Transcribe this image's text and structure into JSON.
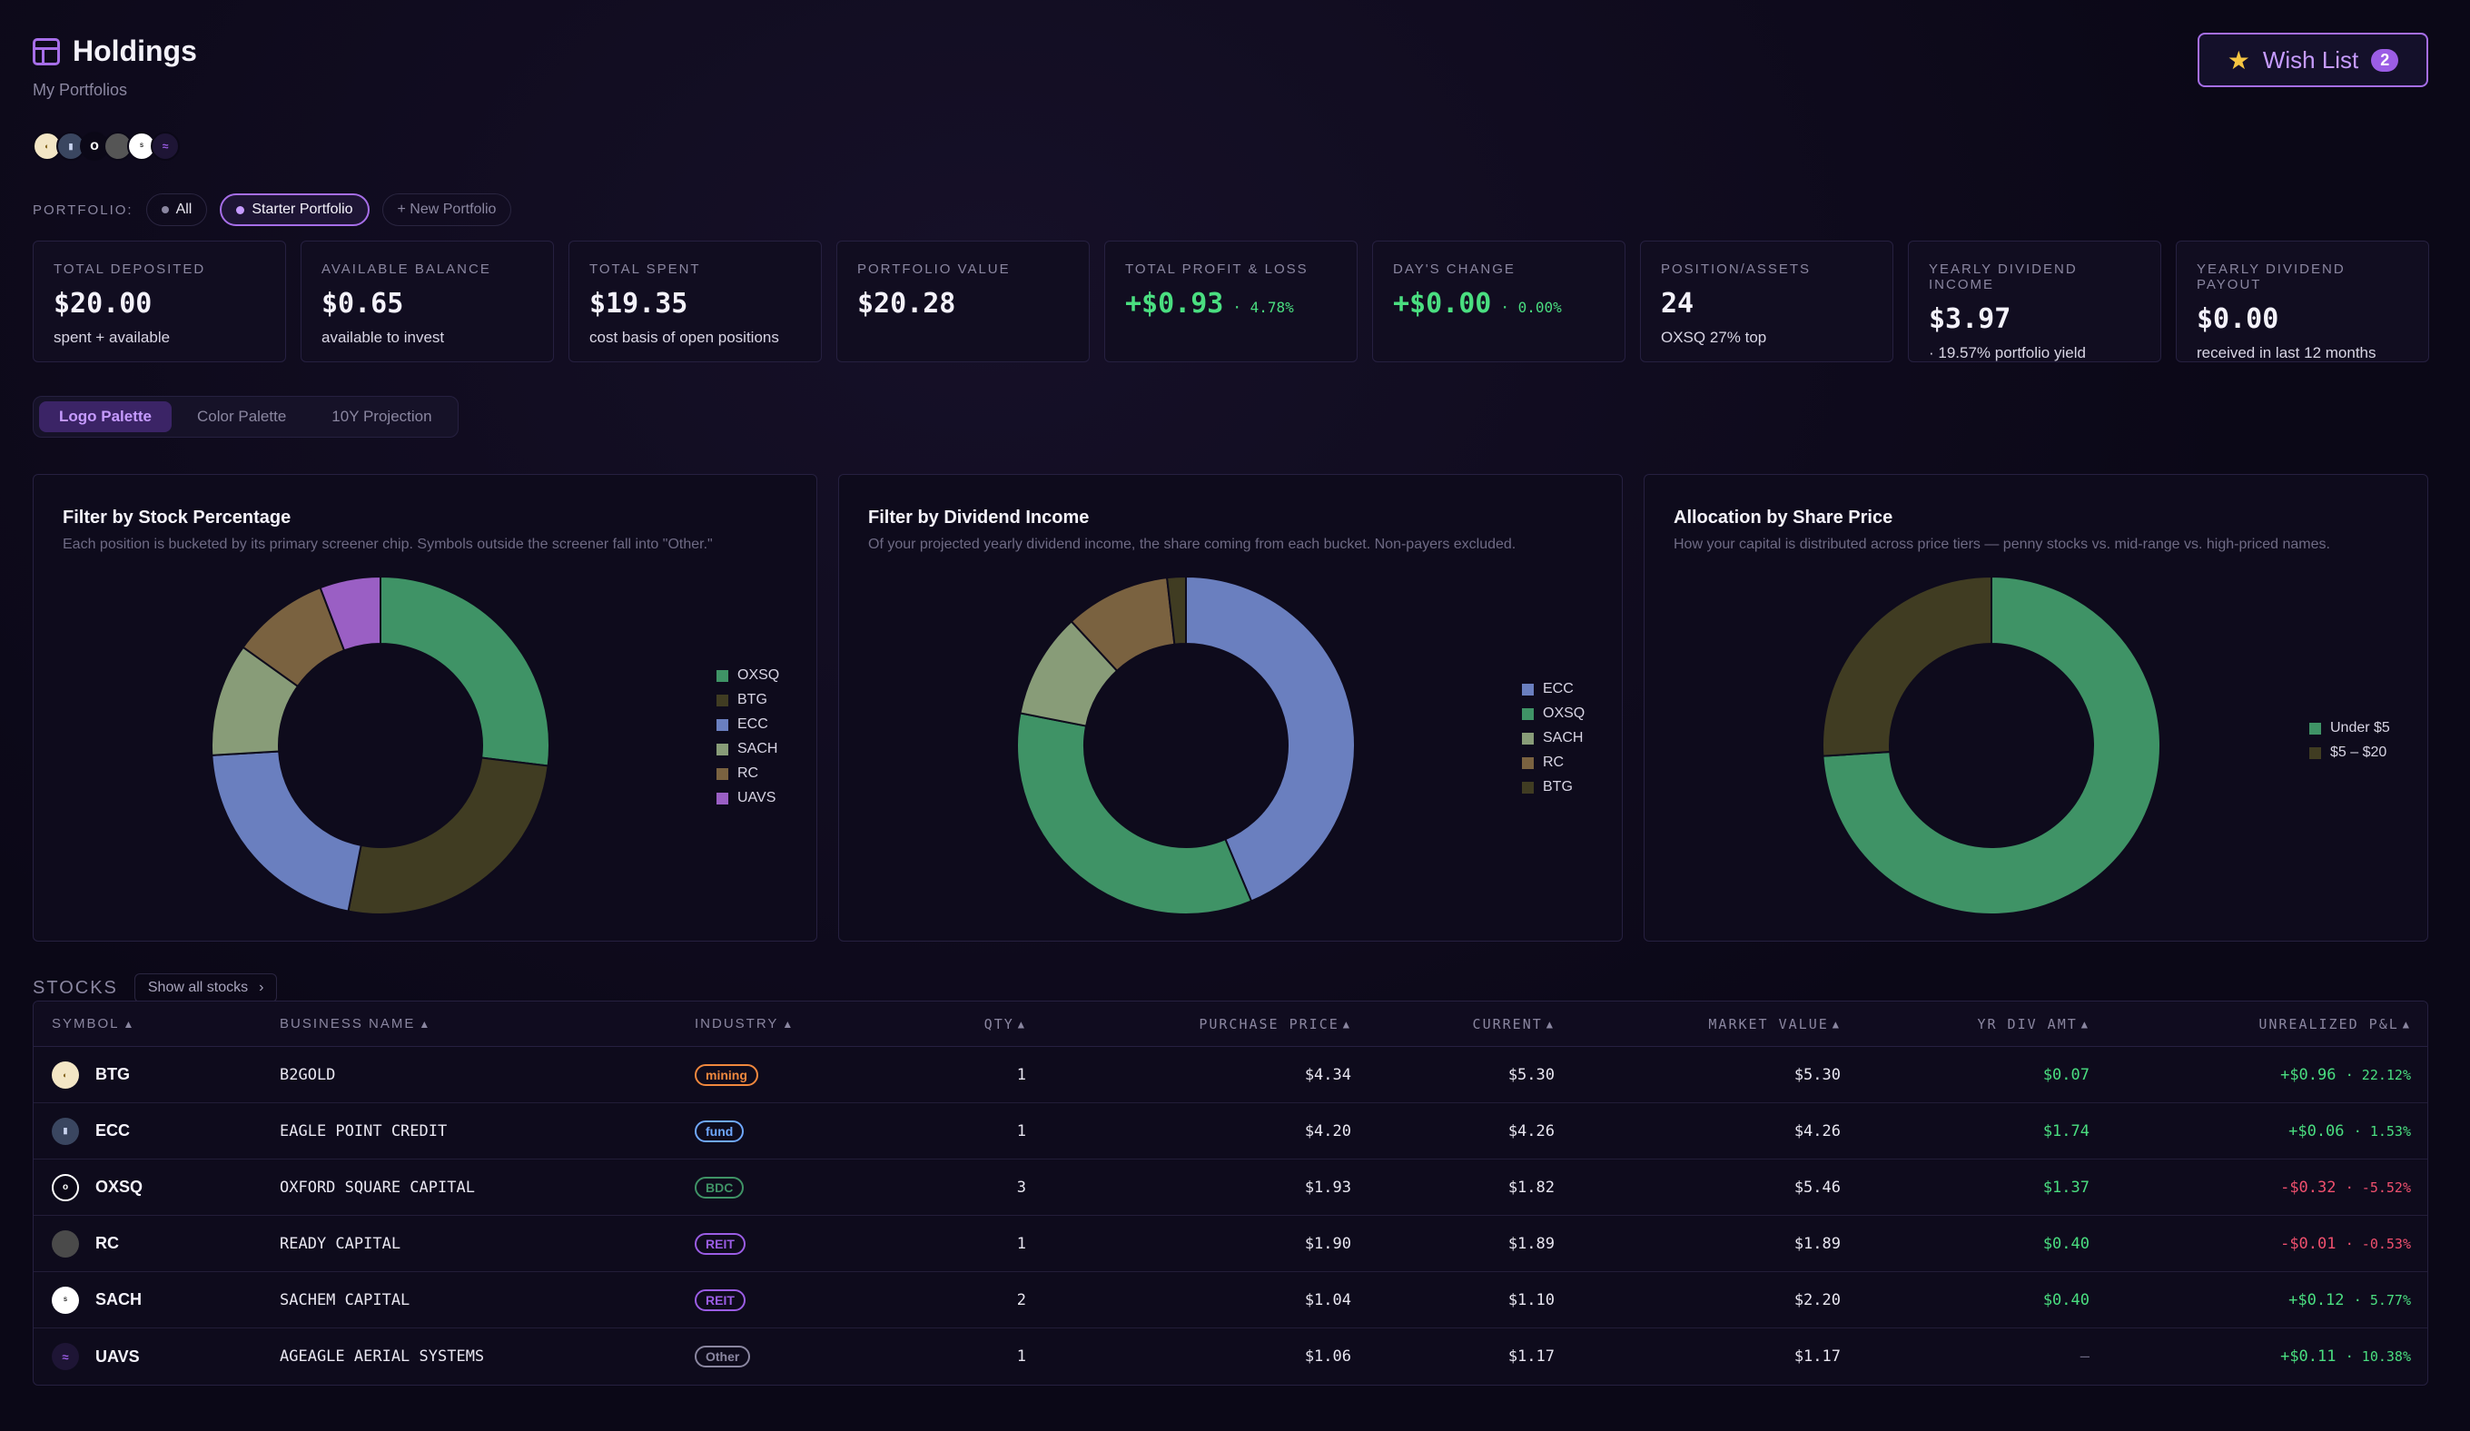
{
  "header": {
    "title": "Holdings",
    "subtitle": "My Portfolios",
    "wish_list_label": "Wish List",
    "wish_list_count": "2"
  },
  "portfolio": {
    "label": "PORTFOLIO:",
    "options": [
      "All",
      "Starter Portfolio",
      "+ New Portfolio"
    ],
    "selected": "Starter Portfolio"
  },
  "cards": [
    {
      "label": "TOTAL DEPOSITED",
      "value": "$20.00",
      "pct": "",
      "sub": "spent + available"
    },
    {
      "label": "AVAILABLE BALANCE",
      "value": "$0.65",
      "pct": "",
      "sub": "available to invest"
    },
    {
      "label": "TOTAL SPENT",
      "value": "$19.35",
      "pct": "",
      "sub": "cost basis of open positions"
    },
    {
      "label": "PORTFOLIO VALUE",
      "value": "$20.28",
      "pct": "",
      "sub": ""
    },
    {
      "label": "TOTAL PROFIT & LOSS",
      "value": "+$0.93",
      "pct": "· 4.78%",
      "sub": ""
    },
    {
      "label": "DAY'S CHANGE",
      "value": "+$0.00",
      "pct": "· 0.00%",
      "sub": ""
    },
    {
      "label": "POSITION/ASSETS",
      "value": "24",
      "pct": "",
      "sub": "OXSQ 27% top"
    },
    {
      "label": "YEARLY DIVIDEND INCOME",
      "value": "$3.97",
      "pct": "",
      "sub": "· 19.57% portfolio yield"
    },
    {
      "label": "YEARLY DIVIDEND PAYOUT",
      "value": "$0.00",
      "pct": "",
      "sub": "received in last 12 months"
    }
  ],
  "tabs": [
    "Logo Palette",
    "Color Palette",
    "10Y Projection"
  ],
  "active_tab": "Logo Palette",
  "panels": [
    {
      "title": "Filter by Stock Percentage",
      "desc": "Each position is bucketed by its primary screener chip. Symbols outside the screener fall into \"Other.\""
    },
    {
      "title": "Filter by Dividend Income",
      "desc": "Of your projected yearly dividend income, the share coming from each bucket. Non-payers excluded."
    },
    {
      "title": "Allocation by Share Price",
      "desc": "How your capital is distributed across price tiers — penny stocks vs. mid-range vs. high-priced names."
    }
  ],
  "chart_data": [
    {
      "type": "pie",
      "categories": [
        "OXSQ",
        "BTG",
        "ECC",
        "SACH",
        "RC",
        "UAVS"
      ],
      "values": [
        26.9,
        26.1,
        21.0,
        10.8,
        9.3,
        5.8
      ],
      "colors": [
        "#3f9366",
        "#403c22",
        "#6a7fbf",
        "#889c78",
        "#7a6240",
        "#9a5fc4"
      ],
      "legend_position": "right"
    },
    {
      "type": "pie",
      "categories": [
        "ECC",
        "OXSQ",
        "SACH",
        "RC",
        "BTG"
      ],
      "values": [
        43.8,
        34.5,
        10.1,
        10.1,
        1.8
      ],
      "colors": [
        "#6a7fbf",
        "#3f9366",
        "#889c78",
        "#7a6240",
        "#403c22"
      ],
      "legend_position": "right"
    },
    {
      "type": "pie",
      "categories": [
        "Under $5",
        "$5 – $20"
      ],
      "values": [
        74,
        26
      ],
      "colors": [
        "#3f9366",
        "#403c22"
      ],
      "legend_position": "right"
    }
  ],
  "stocks": {
    "title": "STOCKS",
    "show_all_label": "Show all stocks",
    "columns": [
      "SYMBOL",
      "BUSINESS NAME",
      "INDUSTRY",
      "QTY",
      "PURCHASE PRICE",
      "CURRENT",
      "MARKET VALUE",
      "YR DIV AMT",
      "UNREALIZED P&L"
    ],
    "rows": [
      {
        "symbol": "BTG",
        "name": "B2GOLD",
        "industry": "mining",
        "badge_color": "#f0883e",
        "qty": "1",
        "purchase": "$4.34",
        "current": "$5.30",
        "market": "$5.30",
        "div": "$0.07",
        "pl": "+$0.96",
        "pl_pct": "· 22.12%",
        "pl_dir": "up"
      },
      {
        "symbol": "ECC",
        "name": "EAGLE POINT CREDIT",
        "industry": "fund",
        "badge_color": "#6fa8ff",
        "qty": "1",
        "purchase": "$4.20",
        "current": "$4.26",
        "market": "$4.26",
        "div": "$1.74",
        "pl": "+$0.06",
        "pl_pct": "· 1.53%",
        "pl_dir": "up"
      },
      {
        "symbol": "OXSQ",
        "name": "OXFORD SQUARE CAPITAL",
        "industry": "BDC",
        "badge_color": "#3f9366",
        "qty": "3",
        "purchase": "$1.93",
        "current": "$1.82",
        "market": "$5.46",
        "div": "$1.37",
        "pl": "-$0.32",
        "pl_pct": "· -5.52%",
        "pl_dir": "down"
      },
      {
        "symbol": "RC",
        "name": "READY CAPITAL",
        "industry": "REIT",
        "badge_color": "#9b5de5",
        "qty": "1",
        "purchase": "$1.90",
        "current": "$1.89",
        "market": "$1.89",
        "div": "$0.40",
        "pl": "-$0.01",
        "pl_pct": "· -0.53%",
        "pl_dir": "down"
      },
      {
        "symbol": "SACH",
        "name": "SACHEM CAPITAL",
        "industry": "REIT",
        "badge_color": "#9b5de5",
        "qty": "2",
        "purchase": "$1.04",
        "current": "$1.10",
        "market": "$2.20",
        "div": "$0.40",
        "pl": "+$0.12",
        "pl_pct": "· 5.77%",
        "pl_dir": "up"
      },
      {
        "symbol": "UAVS",
        "name": "AGEAGLE AERIAL SYSTEMS",
        "industry": "Other",
        "badge_color": "#8a86a0",
        "qty": "1",
        "purchase": "$1.06",
        "current": "$1.17",
        "market": "$1.17",
        "div": "—",
        "pl": "+$0.11",
        "pl_pct": "· 10.38%",
        "pl_dir": "up"
      }
    ]
  }
}
